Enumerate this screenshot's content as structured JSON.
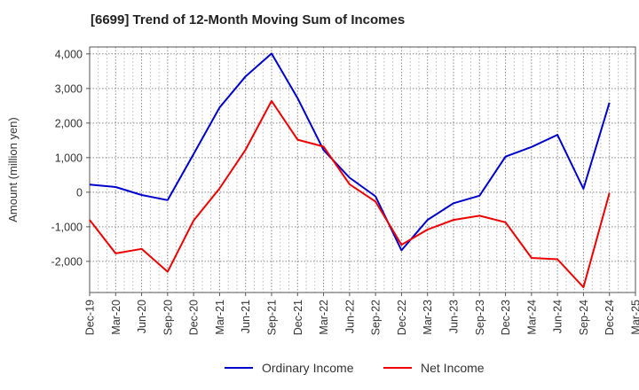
{
  "chart_data": {
    "type": "line",
    "title": "[6699]  Trend of 12-Month Moving Sum of Incomes",
    "xlabel": "",
    "ylabel": "Amount (million yen)",
    "ylim": [
      -2900,
      4200
    ],
    "yticks": [
      4000,
      3000,
      2000,
      1000,
      0,
      -1000,
      -2000
    ],
    "ytick_labels": [
      "4,000",
      "3,000",
      "2,000",
      "1,000",
      "0",
      "-1,000",
      "-2,000"
    ],
    "grid": true,
    "legend_position": "bottom-center",
    "categories": [
      "Dec-19",
      "Mar-20",
      "Jun-20",
      "Sep-20",
      "Dec-20",
      "Mar-21",
      "Jun-21",
      "Sep-21",
      "Dec-21",
      "Mar-22",
      "Jun-22",
      "Sep-22",
      "Dec-22",
      "Mar-23",
      "Jun-23",
      "Sep-23",
      "Dec-23",
      "Mar-24",
      "Jun-24",
      "Sep-24",
      "Dec-24",
      "Mar-25"
    ],
    "series": [
      {
        "name": "Ordinary Income",
        "color": "#0000cc",
        "values": [
          220,
          150,
          -80,
          -230,
          1100,
          2450,
          3350,
          4010,
          2720,
          1220,
          420,
          -120,
          -1680,
          -800,
          -320,
          -100,
          1030,
          1310,
          1660,
          100,
          2590,
          null
        ]
      },
      {
        "name": "Net Income",
        "color": "#ee0000",
        "values": [
          -800,
          -1770,
          -1640,
          -2300,
          -820,
          110,
          1230,
          2640,
          1520,
          1320,
          230,
          -270,
          -1520,
          -1080,
          -800,
          -680,
          -870,
          -1900,
          -1940,
          -2750,
          -20,
          null
        ]
      }
    ]
  }
}
